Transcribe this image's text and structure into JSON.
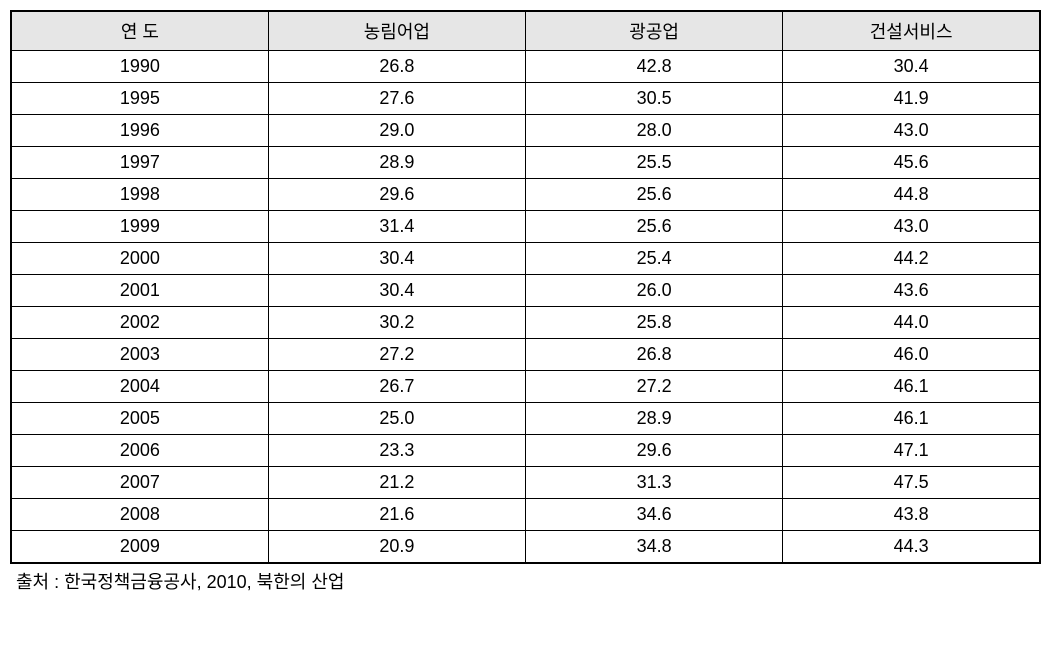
{
  "table": {
    "type": "table",
    "columns": [
      "연  도",
      "농림어업",
      "광공업",
      "건설서비스"
    ],
    "rows": [
      [
        "1990",
        "26.8",
        "42.8",
        "30.4"
      ],
      [
        "1995",
        "27.6",
        "30.5",
        "41.9"
      ],
      [
        "1996",
        "29.0",
        "28.0",
        "43.0"
      ],
      [
        "1997",
        "28.9",
        "25.5",
        "45.6"
      ],
      [
        "1998",
        "29.6",
        "25.6",
        "44.8"
      ],
      [
        "1999",
        "31.4",
        "25.6",
        "43.0"
      ],
      [
        "2000",
        "30.4",
        "25.4",
        "44.2"
      ],
      [
        "2001",
        "30.4",
        "26.0",
        "43.6"
      ],
      [
        "2002",
        "30.2",
        "25.8",
        "44.0"
      ],
      [
        "2003",
        "27.2",
        "26.8",
        "46.0"
      ],
      [
        "2004",
        "26.7",
        "27.2",
        "46.1"
      ],
      [
        "2005",
        "25.0",
        "28.9",
        "46.1"
      ],
      [
        "2006",
        "23.3",
        "29.6",
        "47.1"
      ],
      [
        "2007",
        "21.2",
        "31.3",
        "47.5"
      ],
      [
        "2008",
        "21.6",
        "34.6",
        "43.8"
      ],
      [
        "2009",
        "20.9",
        "34.8",
        "44.3"
      ]
    ],
    "header_background": "#e6e6e6",
    "border_color": "#000000",
    "font_size": 18,
    "text_color": "#000000",
    "background_color": "#ffffff"
  },
  "source": {
    "text": "출처 : 한국정책금융공사, 2010, 북한의 산업"
  }
}
